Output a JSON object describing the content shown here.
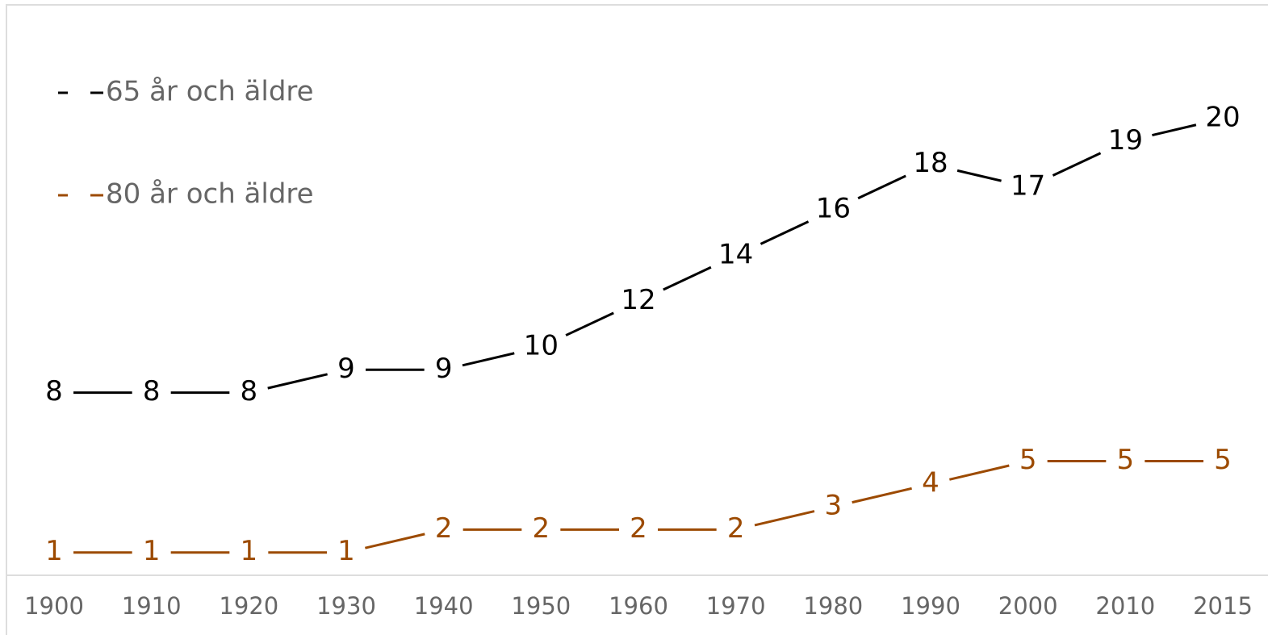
{
  "chart_data": {
    "type": "line",
    "categories": [
      "1900",
      "1910",
      "1920",
      "1930",
      "1940",
      "1950",
      "1960",
      "1970",
      "1980",
      "1990",
      "2000",
      "2010",
      "2015"
    ],
    "series": [
      {
        "name": "65 år och äldre",
        "color": "#000000",
        "values": [
          8,
          8,
          8,
          9,
          9,
          10,
          12,
          14,
          16,
          18,
          17,
          19,
          20
        ]
      },
      {
        "name": "80 år och äldre",
        "color": "#9c4a00",
        "values": [
          1,
          1,
          1,
          1,
          2,
          2,
          2,
          2,
          3,
          4,
          5,
          5,
          5
        ]
      }
    ],
    "legend": "top-left",
    "grid": false
  }
}
